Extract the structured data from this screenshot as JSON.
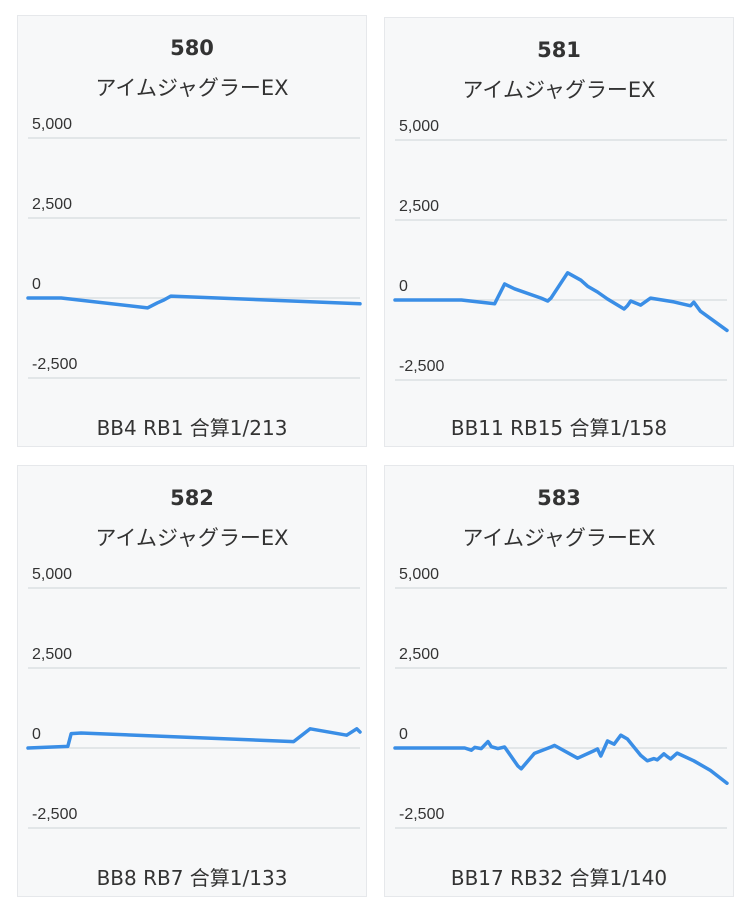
{
  "chart_data": [
    {
      "type": "line",
      "title": "580",
      "subtitle": "アイムジャグラーEX",
      "footer": "BB4 RB1 合算1/213",
      "yticks": [
        "5,000",
        "2,500",
        "0",
        "-2,500"
      ],
      "ylim": [
        -2500,
        5000
      ],
      "grid": true,
      "color": "#3a8ee6",
      "series": [
        {
          "points": [
            [
              0,
              0
            ],
            [
              10,
              0
            ],
            [
              36,
              -310
            ],
            [
              39,
              -150
            ],
            [
              41,
              -60
            ],
            [
              43,
              60
            ],
            [
              100,
              -180
            ]
          ]
        }
      ]
    },
    {
      "type": "line",
      "title": "581",
      "subtitle": "アイムジャグラーEX",
      "footer": "BB11 RB15 合算1/158",
      "yticks": [
        "5,000",
        "2,500",
        "0",
        "-2,500"
      ],
      "ylim": [
        -2500,
        5000
      ],
      "grid": true,
      "color": "#3a8ee6",
      "series": [
        {
          "points": [
            [
              0,
              0
            ],
            [
              20,
              0
            ],
            [
              30,
              -120
            ],
            [
              33,
              500
            ],
            [
              36,
              350
            ],
            [
              44,
              60
            ],
            [
              46,
              -30
            ],
            [
              47,
              60
            ],
            [
              52,
              850
            ],
            [
              56,
              620
            ],
            [
              58,
              430
            ],
            [
              61,
              250
            ],
            [
              64,
              30
            ],
            [
              69,
              -280
            ],
            [
              70,
              -180
            ],
            [
              71,
              -30
            ],
            [
              74,
              -160
            ],
            [
              77,
              60
            ],
            [
              84,
              -60
            ],
            [
              89,
              -180
            ],
            [
              90,
              -70
            ],
            [
              92,
              -350
            ],
            [
              100,
              -950
            ]
          ]
        }
      ]
    },
    {
      "type": "line",
      "title": "582",
      "subtitle": "アイムジャグラーEX",
      "footer": "BB8 RB7 合算1/133",
      "yticks": [
        "5,000",
        "2,500",
        "0",
        "-2,500"
      ],
      "ylim": [
        -2500,
        5000
      ],
      "grid": true,
      "color": "#3a8ee6",
      "series": [
        {
          "points": [
            [
              0,
              0
            ],
            [
              12,
              50
            ],
            [
              13,
              450
            ],
            [
              16,
              470
            ],
            [
              80,
              200
            ],
            [
              85,
              600
            ],
            [
              96,
              400
            ],
            [
              99,
              600
            ],
            [
              100,
              500
            ]
          ]
        }
      ]
    },
    {
      "type": "line",
      "title": "583",
      "subtitle": "アイムジャグラーEX",
      "footer": "BB17 RB32 合算1/140",
      "yticks": [
        "5,000",
        "2,500",
        "0",
        "-2,500"
      ],
      "ylim": [
        -2500,
        5000
      ],
      "grid": true,
      "color": "#3a8ee6",
      "series": [
        {
          "points": [
            [
              0,
              0
            ],
            [
              21,
              0
            ],
            [
              23,
              -70
            ],
            [
              24,
              20
            ],
            [
              26,
              -20
            ],
            [
              28,
              200
            ],
            [
              29,
              40
            ],
            [
              31,
              -20
            ],
            [
              33,
              30
            ],
            [
              37,
              -560
            ],
            [
              38,
              -650
            ],
            [
              42,
              -170
            ],
            [
              47,
              30
            ],
            [
              48,
              80
            ],
            [
              55,
              -320
            ],
            [
              60,
              -80
            ],
            [
              61,
              -30
            ],
            [
              62,
              -250
            ],
            [
              64,
              220
            ],
            [
              66,
              120
            ],
            [
              68,
              400
            ],
            [
              70,
              280
            ],
            [
              74,
              -230
            ],
            [
              76,
              -400
            ],
            [
              78,
              -330
            ],
            [
              79,
              -370
            ],
            [
              81,
              -180
            ],
            [
              82,
              -270
            ],
            [
              83,
              -340
            ],
            [
              85,
              -160
            ],
            [
              90,
              -400
            ],
            [
              95,
              -700
            ],
            [
              100,
              -1100
            ]
          ]
        }
      ]
    }
  ]
}
